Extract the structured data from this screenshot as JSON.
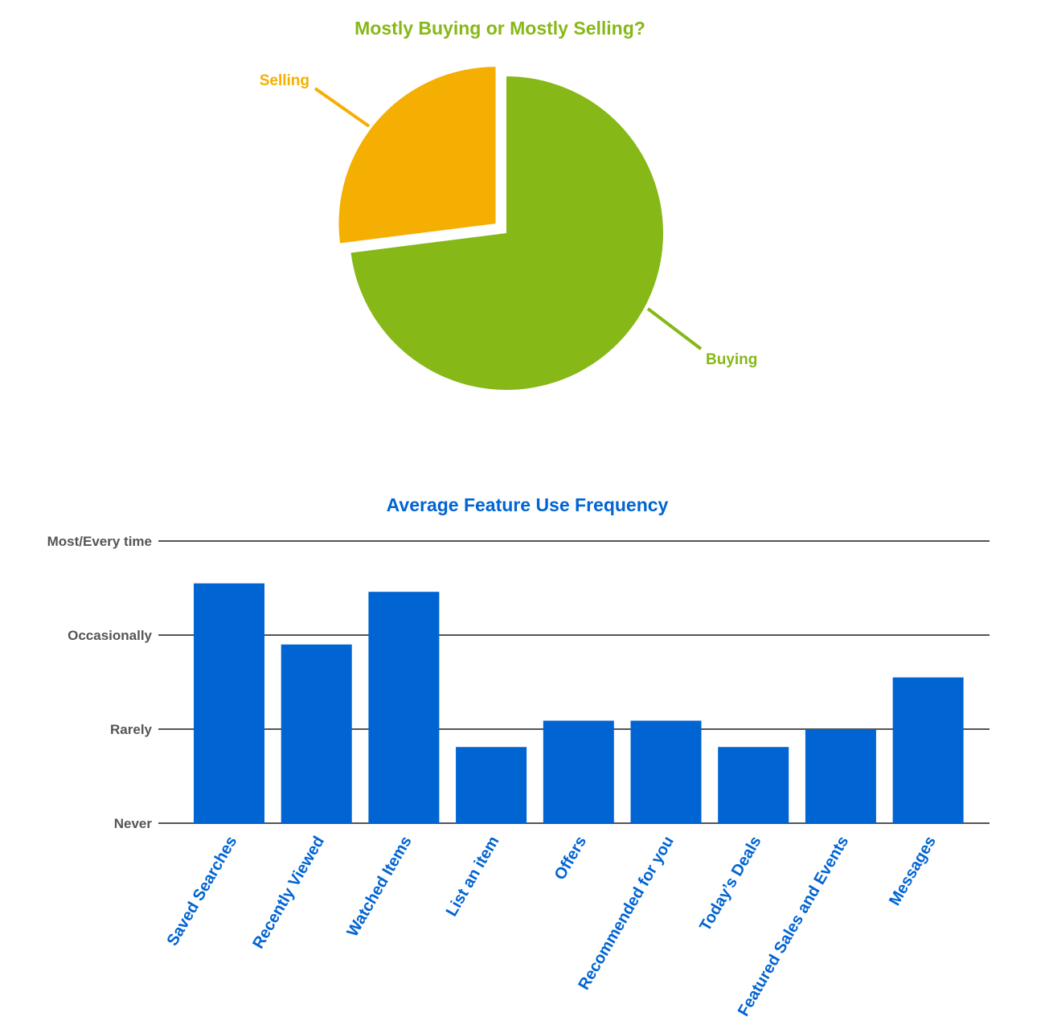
{
  "chart_data": [
    {
      "type": "pie",
      "title": "Mostly Buying or Mostly Selling?",
      "slices": [
        {
          "label": "Buying",
          "value": 73,
          "color": "#86b817"
        },
        {
          "label": "Selling",
          "value": 27,
          "color": "#f5af02"
        }
      ]
    },
    {
      "type": "bar",
      "title": "Average Feature Use Frequency",
      "categories": [
        "Saved Searches",
        "Recently Viewed",
        "Watched Items",
        "List an item",
        "Offers",
        "Recommended for you",
        "Today’s Deals",
        "Featured Sales and Events",
        "Messages"
      ],
      "values": [
        2.55,
        1.9,
        2.46,
        0.81,
        1.09,
        1.09,
        0.81,
        1.0,
        1.55
      ],
      "y_tick_labels": [
        "Never",
        "Rarely",
        "Occasionally",
        "Most/Every time"
      ],
      "ylim": [
        0,
        3
      ],
      "grid": true,
      "bar_color": "#0064d2"
    }
  ],
  "colors": {
    "pie_title": "#86b817",
    "bar_title": "#0064d2",
    "gridline": "#555555"
  }
}
